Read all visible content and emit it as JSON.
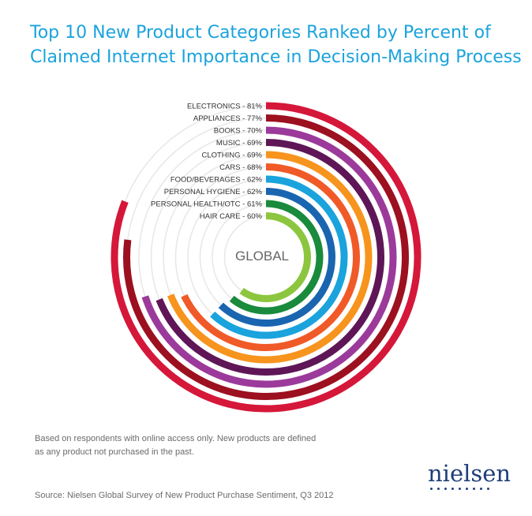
{
  "title_line1": "Top 10 New Product Categories Ranked by Percent of",
  "title_line2": "Claimed Internet Importance in Decision-Making Process",
  "center_label": "GLOBAL",
  "note_line1": "Based on respondents with online access only. New products are defined",
  "note_line2": "as any product not purchased in the past.",
  "source": "Source: Nielsen Global Survey of New Product Purchase Sentiment, Q3 2012",
  "brand": "nielsen",
  "chart_data": {
    "type": "radial-bar",
    "unit": "%",
    "track_color": "#e8e8e8",
    "categories": [
      {
        "label": "ELECTRONICS - 81%",
        "value": 81,
        "color": "#d5173a"
      },
      {
        "label": "APPLIANCES - 77%",
        "value": 77,
        "color": "#9c1020"
      },
      {
        "label": "BOOKS - 70%",
        "value": 70,
        "color": "#9b3a9b"
      },
      {
        "label": "MUSIC - 69%",
        "value": 69,
        "color": "#5e1657"
      },
      {
        "label": "CLOTHING - 69%",
        "value": 69,
        "color": "#f7941d"
      },
      {
        "label": "CARS - 68%",
        "value": 68,
        "color": "#f05a28"
      },
      {
        "label": "FOOD/BEVERAGES - 62%",
        "value": 62,
        "color": "#1aa3dc"
      },
      {
        "label": "PERSONAL HYGIENE - 62%",
        "value": 62,
        "color": "#1a65b0"
      },
      {
        "label": "PERSONAL HEALTH/OTC - 61%",
        "value": 61,
        "color": "#1a8a3c"
      },
      {
        "label": "HAIR CARE - 60%",
        "value": 60,
        "color": "#8cc63f"
      }
    ]
  }
}
